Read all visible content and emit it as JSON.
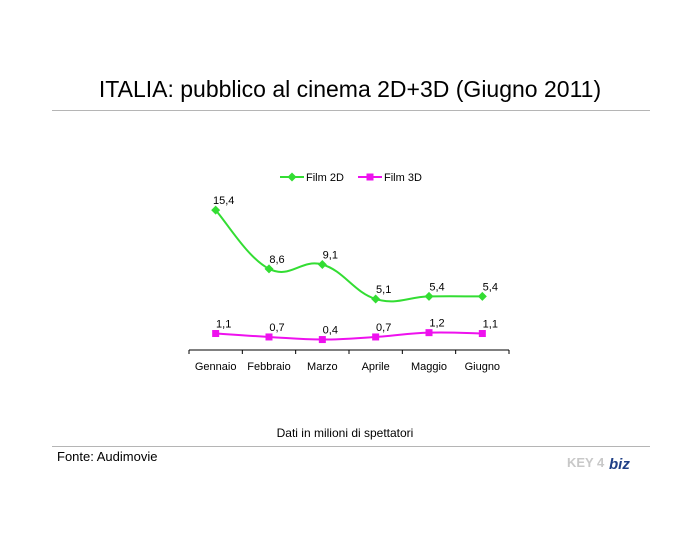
{
  "title": "ITALIA: pubblico al cinema 2D+3D (Giugno 2011)",
  "note": "Dati in milioni di spettatori",
  "source": "Fonte: Audimovie",
  "logo": {
    "text_key": "KEY",
    "text_num": "4",
    "text_biz": "biz"
  },
  "chart_data": {
    "type": "line",
    "categories": [
      "Gennaio",
      "Febbraio",
      "Marzo",
      "Aprile",
      "Maggio",
      "Giugno"
    ],
    "series": [
      {
        "name": "Film 2D",
        "values": [
          15.4,
          8.6,
          9.1,
          5.1,
          5.4,
          5.4
        ],
        "labels": [
          "15,4",
          "8,6",
          "9,1",
          "5,1",
          "5,4",
          "5,4"
        ],
        "color": "#33dd33",
        "marker": "diamond"
      },
      {
        "name": "Film 3D",
        "values": [
          1.1,
          0.7,
          0.4,
          0.7,
          1.2,
          1.1
        ],
        "labels": [
          "1,1",
          "0,7",
          "0,4",
          "0,7",
          "1,2",
          "1,1"
        ],
        "color": "#ee11ee",
        "marker": "square"
      }
    ],
    "ylim": [
      0,
      16
    ],
    "grid": false,
    "legend": "top"
  }
}
